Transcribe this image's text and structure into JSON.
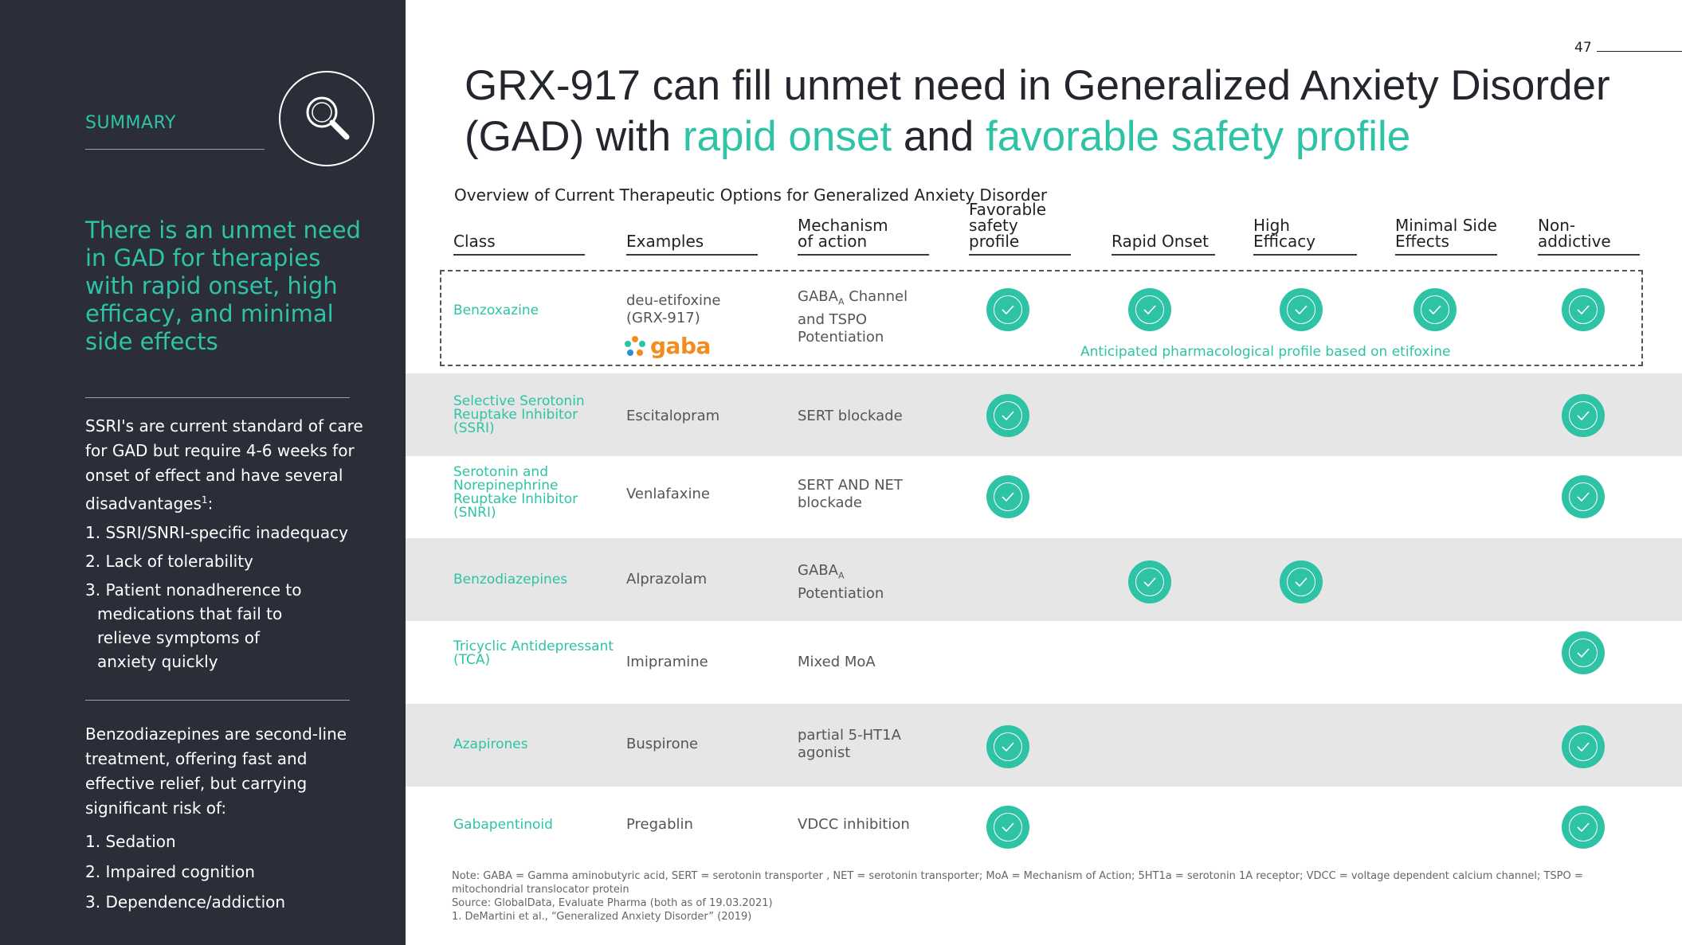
{
  "page_number": "47",
  "title": {
    "part1": "GRX-917 can fill unmet need in Generalized Anxiety Disorder (GAD) with ",
    "hl1": "rapid onset",
    "mid": " and ",
    "hl2": "favorable safety profile"
  },
  "sidebar": {
    "label": "SUMMARY",
    "headline": "There is an unmet need in GAD for therapies with rapid onset, high efficacy, and minimal side effects",
    "ssri_text": "SSRI's are current standard of care for GAD but require 4-6 weeks for onset of effect and have several disadvantages",
    "ssri_sup": "1",
    "ssri_colon": ":",
    "ssri_items": [
      "1. SSRI/SNRI-specific inadequacy",
      "2. Lack of tolerability",
      "3. Patient nonadherence to medications that fail to relieve symptoms of anxiety quickly"
    ],
    "benzo_text": "Benzodiazepines are second-line treatment, offering fast and effective relief, but carrying significant risk of:",
    "benzo_items": [
      "1. Sedation",
      "2. Impaired cognition",
      "3. Dependence/addiction"
    ]
  },
  "table": {
    "subtitle": "Overview of Current Therapeutic Options for Generalized Anxiety Disorder",
    "headers": {
      "class": "Class",
      "examples": "Examples",
      "mechanism_l1": "Mechanism",
      "mechanism_l2": "of action",
      "safety_l1": "Favorable",
      "safety_l2": "safety profile",
      "rapid": "Rapid Onset",
      "efficacy": "High Efficacy",
      "minimal_l1": "Minimal Side",
      "minimal_l2": "Effects",
      "nonaddictive_l1": "Non-",
      "nonaddictive_l2": "addictive"
    },
    "rows": [
      {
        "class": "Benzoxazine",
        "example_l1": "deu-etifoxine",
        "example_l2": "(GRX-917)",
        "mech_l1a": "GABA",
        "mech_l1sub": "A",
        "mech_l1b": " Channel",
        "mech_l2": "and TSPO",
        "mech_l3": "Potentiation",
        "checks": [
          true,
          true,
          true,
          true,
          true
        ]
      },
      {
        "class_l1": "Selective Serotonin",
        "class_l2": "Reuptake Inhibitor",
        "class_l3": "(SSRI)",
        "example": "Escitalopram",
        "mech": "SERT blockade",
        "checks": [
          true,
          false,
          false,
          false,
          true
        ]
      },
      {
        "class_l1": "Serotonin and",
        "class_l2": "Norepinephrine",
        "class_l3": "Reuptake Inhibitor",
        "class_l4": "(SNRI)",
        "example": "Venlafaxine",
        "mech_l1": "SERT AND NET",
        "mech_l2": "blockade",
        "checks": [
          true,
          false,
          false,
          false,
          true
        ]
      },
      {
        "class": "Benzodiazepines",
        "example": "Alprazolam",
        "mech_l1a": "GABA",
        "mech_l1sub": "A",
        "mech_l2": "Potentiation",
        "checks": [
          false,
          true,
          true,
          false,
          false
        ]
      },
      {
        "class_l1": "Tricyclic Antidepressant",
        "class_l2": "(TCA)",
        "example": "Imipramine",
        "mech": "Mixed MoA",
        "checks": [
          false,
          false,
          false,
          false,
          true
        ]
      },
      {
        "class": "Azapirones",
        "example": "Buspirone",
        "mech_l1": "partial 5-HT1A",
        "mech_l2": "agonist",
        "checks": [
          true,
          false,
          false,
          false,
          true
        ]
      },
      {
        "class": "Gabapentinoid",
        "example": "Pregablin",
        "mech": "VDCC inhibition",
        "checks": [
          true,
          false,
          false,
          false,
          true
        ]
      }
    ],
    "anticipated": "Anticipated pharmacological profile based on etifoxine",
    "logo_text": "gaba"
  },
  "notes": {
    "note": "Note: GABA = Gamma aminobutyric acid, SERT = serotonin transporter , NET = serotonin transporter; MoA = Mechanism of Action; 5HT1a = serotonin 1A receptor; VDCC = voltage dependent calcium channel; TSPO = mitochondrial translocator protein",
    "source": "Source: GlobalData, Evaluate Pharma (both as of 19.03.2021)",
    "ref": "1.   DeMartini et al., “Generalized Anxiety Disorder” (2019)"
  },
  "colors": {
    "accent": "#2ec3a5",
    "sidebar_bg": "#2b2d38",
    "row_shade": "#e6e6e6",
    "logo_orange": "#f28c1e"
  },
  "icons": [
    "search-icon",
    "check-icon",
    "gaba-logo-icon"
  ]
}
